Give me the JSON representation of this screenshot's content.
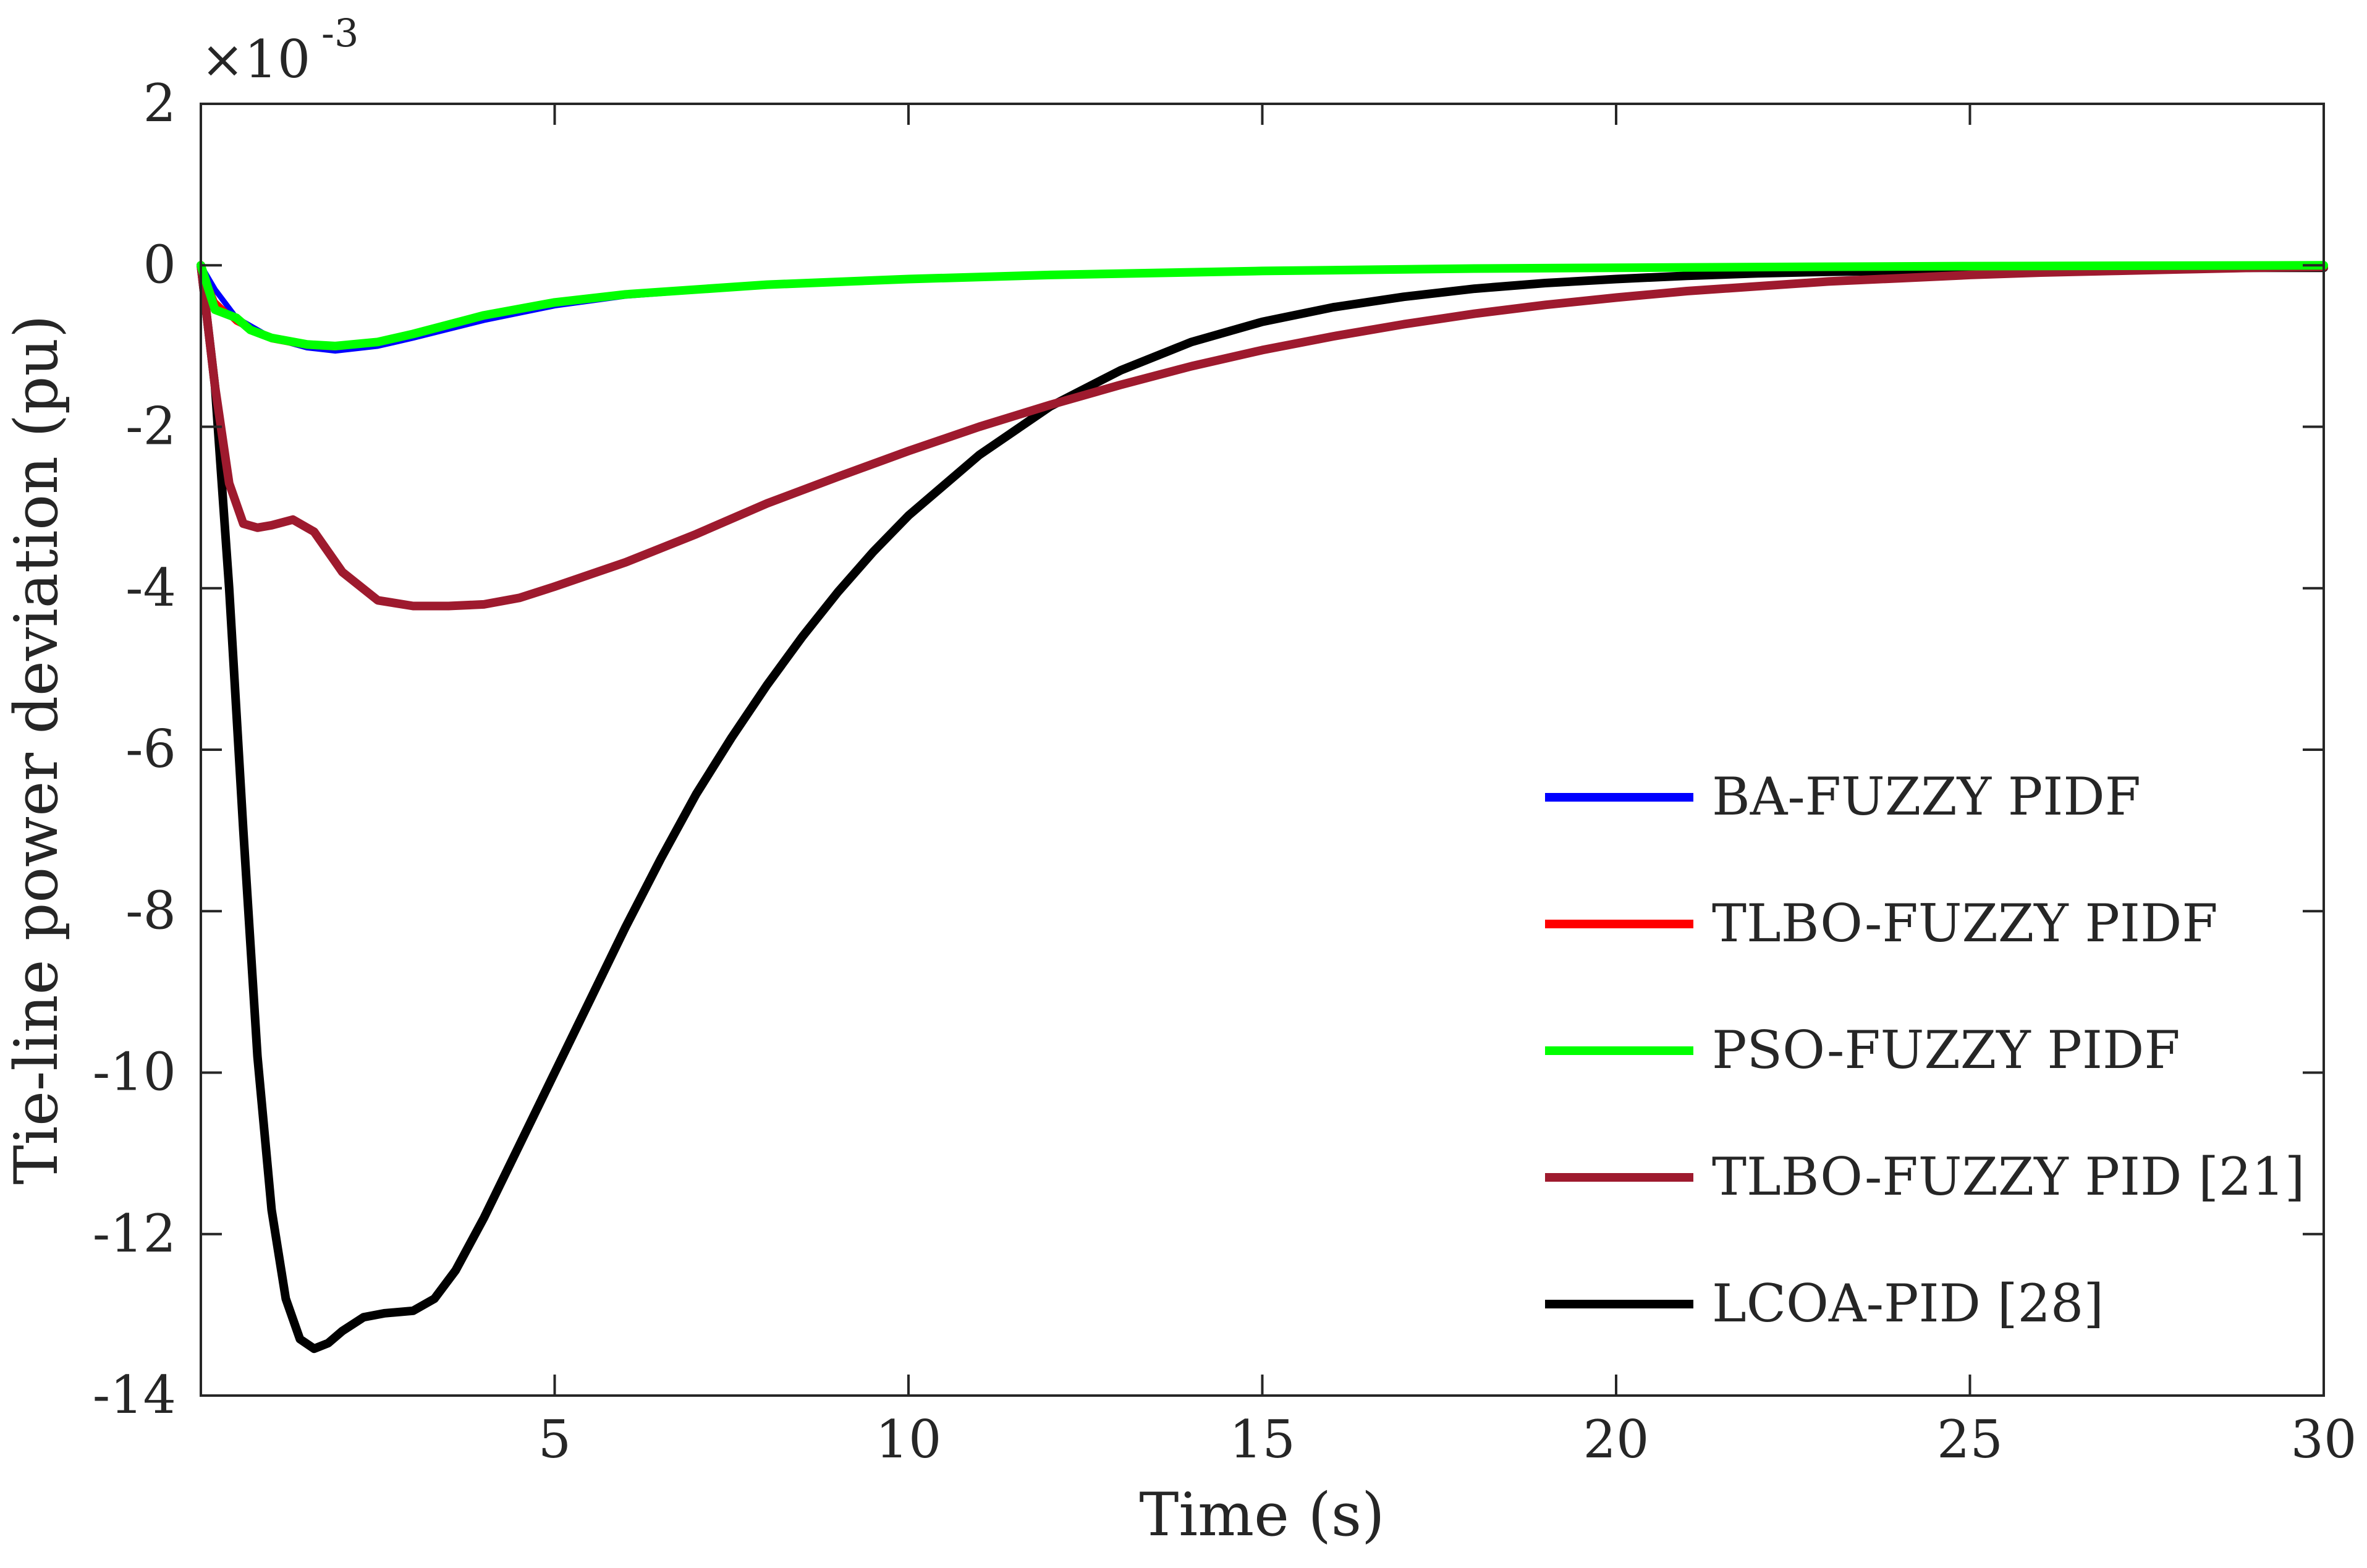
{
  "chart_data": {
    "type": "line",
    "title": "",
    "xlabel": "Time (s)",
    "ylabel": "Tie-line power deviation (pu)",
    "exponent_label": "×10",
    "exponent_power": "-3",
    "xlim": [
      0,
      30
    ],
    "ylim": [
      -14,
      2
    ],
    "xticks": [
      5,
      10,
      15,
      20,
      25,
      30
    ],
    "xtick_labels": [
      "5",
      "10",
      "15",
      "20",
      "25",
      "30"
    ],
    "yticks": [
      2,
      0,
      -2,
      -4,
      -6,
      -8,
      -10,
      -12,
      -14
    ],
    "ytick_labels": [
      "2",
      "0",
      "-2",
      "-4",
      "-6",
      "-8",
      "-10",
      "-12",
      "-14"
    ],
    "legend_position": "lower-right",
    "series": [
      {
        "name": "BA-FUZZY PIDF",
        "color": "#0000ff",
        "x": [
          0,
          0.2,
          0.5,
          1.0,
          1.5,
          1.9,
          2.5,
          3.0,
          4.0,
          5.0,
          6.0,
          8.0,
          10.0,
          12.0,
          15.0,
          18.0,
          20.0,
          25.0,
          30.0
        ],
        "values": [
          0,
          -0.3,
          -0.65,
          -0.9,
          -1.02,
          -1.06,
          -1.0,
          -0.9,
          -0.68,
          -0.5,
          -0.38,
          -0.25,
          -0.18,
          -0.12,
          -0.07,
          -0.04,
          -0.03,
          -0.01,
          0
        ]
      },
      {
        "name": "TLBO-FUZZY PIDF",
        "color": "#ff0000",
        "x": [
          0,
          0.2,
          0.5,
          1.0,
          1.5,
          1.9,
          2.5,
          3.0,
          4.0,
          5.0,
          6.0,
          8.0,
          10.0,
          12.0,
          15.0,
          18.0,
          20.0,
          25.0,
          30.0
        ],
        "values": [
          0,
          -0.45,
          -0.7,
          -0.92,
          -1.0,
          -1.02,
          -0.96,
          -0.85,
          -0.63,
          -0.47,
          -0.36,
          -0.24,
          -0.17,
          -0.12,
          -0.07,
          -0.04,
          -0.03,
          -0.01,
          0
        ]
      },
      {
        "name": "PSO-FUZZY PIDF",
        "color": "#00ff00",
        "x": [
          0,
          0.2,
          0.5,
          0.7,
          1.0,
          1.5,
          1.9,
          2.5,
          3.0,
          4.0,
          5.0,
          6.0,
          8.0,
          10.0,
          12.0,
          15.0,
          18.0,
          20.0,
          25.0,
          30.0
        ],
        "values": [
          0,
          -0.55,
          -0.65,
          -0.8,
          -0.9,
          -0.98,
          -1.0,
          -0.95,
          -0.85,
          -0.62,
          -0.46,
          -0.36,
          -0.24,
          -0.17,
          -0.12,
          -0.07,
          -0.04,
          -0.03,
          -0.01,
          0
        ]
      },
      {
        "name": "TLBO-FUZZY PID [21]",
        "color": "#9e1a2e",
        "x": [
          0,
          0.2,
          0.4,
          0.6,
          0.8,
          1.0,
          1.3,
          1.6,
          2.0,
          2.5,
          3.0,
          3.5,
          4.0,
          4.5,
          5.0,
          6.0,
          7.0,
          8.0,
          9.0,
          10.0,
          11.0,
          12.0,
          13.0,
          14.0,
          15.0,
          16.0,
          17.0,
          18.0,
          19.0,
          20.0,
          21.0,
          22.0,
          23.0,
          24.0,
          25.0,
          26.0,
          27.0,
          28.0,
          29.0,
          30.0
        ],
        "values": [
          0,
          -1.5,
          -2.7,
          -3.2,
          -3.25,
          -3.22,
          -3.15,
          -3.3,
          -3.8,
          -4.15,
          -4.22,
          -4.22,
          -4.2,
          -4.12,
          -3.98,
          -3.68,
          -3.33,
          -2.95,
          -2.62,
          -2.3,
          -2.0,
          -1.73,
          -1.48,
          -1.25,
          -1.05,
          -0.88,
          -0.73,
          -0.6,
          -0.49,
          -0.4,
          -0.32,
          -0.26,
          -0.2,
          -0.16,
          -0.12,
          -0.09,
          -0.07,
          -0.05,
          -0.03,
          -0.02
        ]
      },
      {
        "name": "LCOA-PID [28]",
        "color": "#000000",
        "x": [
          0,
          0.2,
          0.4,
          0.6,
          0.8,
          1.0,
          1.2,
          1.4,
          1.6,
          1.8,
          2.0,
          2.3,
          2.6,
          3.0,
          3.3,
          3.6,
          4.0,
          4.5,
          5.0,
          5.5,
          6.0,
          6.5,
          7.0,
          7.5,
          8.0,
          8.5,
          9.0,
          9.5,
          10.0,
          11.0,
          12.0,
          13.0,
          14.0,
          15.0,
          16.0,
          17.0,
          18.0,
          19.0,
          20.0,
          21.0,
          22.0,
          23.0,
          24.0,
          25.0,
          26.0,
          27.0,
          28.0,
          29.0,
          30.0
        ],
        "values": [
          0,
          -1.5,
          -4.0,
          -7.0,
          -9.8,
          -11.7,
          -12.8,
          -13.3,
          -13.42,
          -13.35,
          -13.2,
          -13.03,
          -12.98,
          -12.95,
          -12.8,
          -12.45,
          -11.8,
          -10.9,
          -10.0,
          -9.1,
          -8.2,
          -7.35,
          -6.55,
          -5.85,
          -5.2,
          -4.6,
          -4.05,
          -3.55,
          -3.1,
          -2.35,
          -1.75,
          -1.3,
          -0.95,
          -0.7,
          -0.52,
          -0.39,
          -0.29,
          -0.22,
          -0.17,
          -0.13,
          -0.1,
          -0.08,
          -0.07,
          -0.06,
          -0.05,
          -0.04,
          -0.04,
          -0.03,
          -0.03
        ]
      }
    ]
  }
}
